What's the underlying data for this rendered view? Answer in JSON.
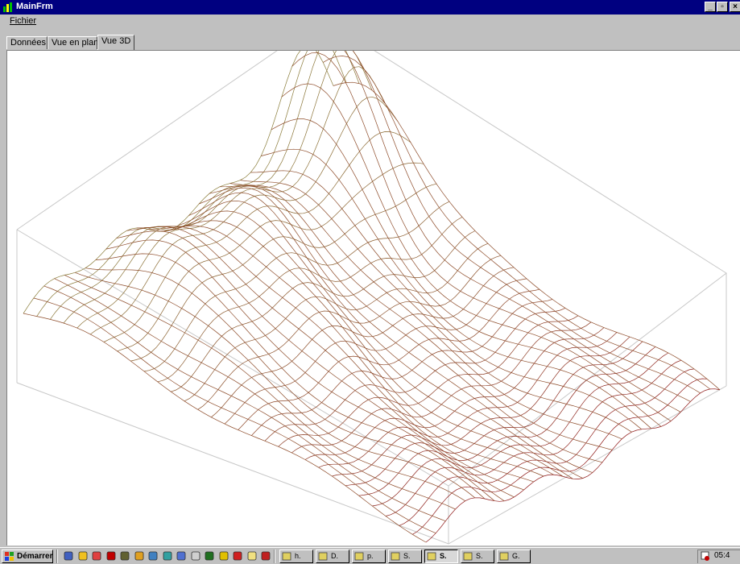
{
  "window": {
    "title": "MainFrm"
  },
  "menu": [
    {
      "label": "Fichier"
    }
  ],
  "tabs": [
    {
      "label": "Données",
      "active": false
    },
    {
      "label": "Vue en plan",
      "active": false
    },
    {
      "label": "Vue 3D",
      "active": true
    }
  ],
  "taskbar": {
    "start_label": "Démarrer",
    "quick_launch_icons": [
      "pen-icon",
      "pencil-icon",
      "brush-icon",
      "red-cross-icon",
      "photo-icon",
      "wand-icon",
      "chart-icon",
      "network-icon",
      "globe-icon",
      "document-icon",
      "tree-icon",
      "smiley-icon",
      "apple-icon",
      "folder-icon",
      "record-icon"
    ],
    "tasks": [
      {
        "label": "h.",
        "icon": "document-icon",
        "active": false
      },
      {
        "label": "D.",
        "icon": "app-icon",
        "active": false
      },
      {
        "label": "p.",
        "icon": "folder-icon",
        "active": false
      },
      {
        "label": "S.",
        "icon": "folder-icon",
        "active": false
      },
      {
        "label": "S.",
        "icon": "app-icon",
        "active": true
      },
      {
        "label": "S.",
        "icon": "tool-icon",
        "active": false
      },
      {
        "label": "G.",
        "icon": "printer-icon",
        "active": false
      }
    ],
    "clock": "05:4"
  },
  "colors": {
    "mesh_low": "#8f1818",
    "mesh_high": "#8a7d3a",
    "titlebar": "#000080"
  }
}
